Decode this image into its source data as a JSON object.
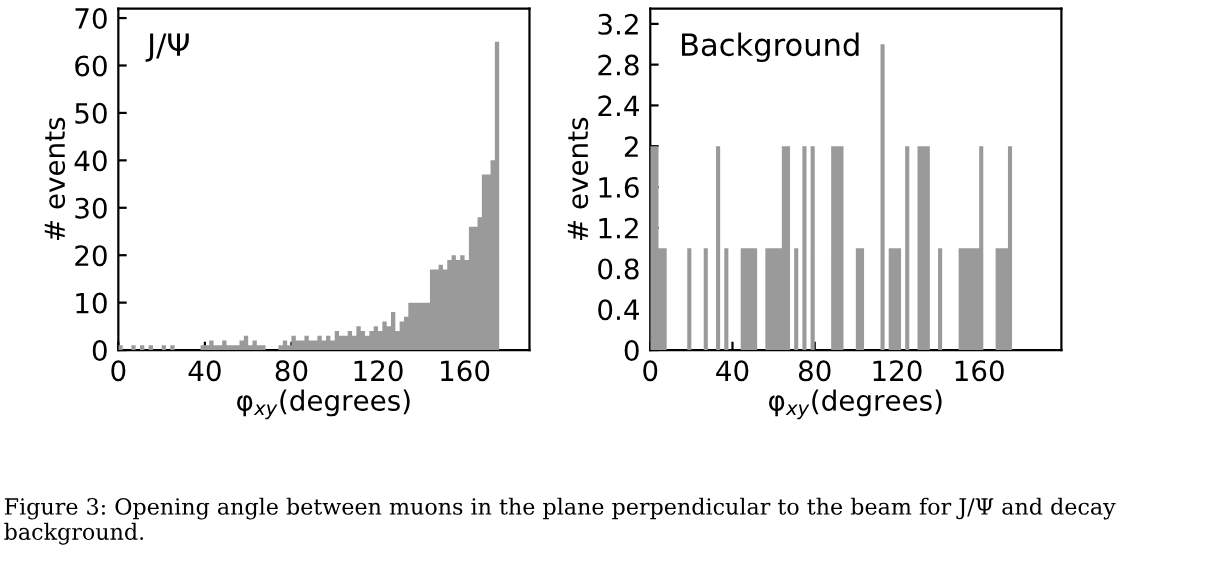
{
  "chart_data": [
    {
      "type": "histogram",
      "title": "J/Ψ",
      "xlabel": "φ$_{xy}$(degrees)",
      "ylabel": "# events",
      "color": "#9a9a9a",
      "bins": [
        0,
        2,
        4,
        6,
        8,
        10,
        12,
        14,
        16,
        18,
        20,
        22,
        24,
        26,
        28,
        30,
        32,
        34,
        36,
        38,
        40,
        42,
        44,
        46,
        48,
        50,
        52,
        54,
        56,
        58,
        60,
        62,
        64,
        66,
        68,
        70,
        72,
        74,
        76,
        78,
        80,
        82,
        84,
        86,
        88,
        90,
        92,
        94,
        96,
        98,
        100,
        102,
        104,
        106,
        108,
        110,
        112,
        114,
        116,
        118,
        120,
        122,
        124,
        126,
        128,
        130,
        132,
        134,
        136,
        138,
        140,
        142,
        144,
        146,
        148,
        150,
        152,
        154,
        156,
        158,
        160,
        162,
        164,
        166,
        168,
        170,
        172,
        174,
        176,
        178,
        180,
        182,
        184,
        186,
        188,
        190
      ],
      "values": [
        1,
        0,
        0,
        1,
        0,
        1,
        0,
        1,
        0,
        0,
        1,
        0,
        1,
        0,
        0,
        0,
        0,
        0,
        0,
        1,
        1,
        2,
        1,
        1,
        2,
        1,
        1,
        1,
        2,
        3,
        1,
        2,
        1,
        1,
        0,
        0,
        0,
        1,
        2,
        1,
        3,
        2,
        2,
        3,
        2,
        2,
        3,
        2,
        3,
        2,
        4,
        3,
        3,
        4,
        3,
        5,
        4,
        3,
        4,
        5,
        4,
        6,
        5,
        8,
        4,
        6,
        7,
        10,
        10,
        10,
        10,
        10,
        17,
        17,
        18,
        17,
        19,
        20,
        19,
        20,
        19,
        26,
        26,
        28,
        37,
        37,
        40,
        65,
        0,
        0,
        0,
        0,
        0,
        0,
        0
      ],
      "xlim": [
        0,
        190
      ],
      "xticks": [
        0,
        40,
        80,
        120,
        160
      ],
      "ylim": [
        0,
        72
      ],
      "yticks": [
        0,
        10,
        20,
        30,
        40,
        50,
        60,
        70
      ],
      "annotations": [
        "Figure 3: Opening angle between muons in the plane perpendicular to the beam for J/Ψ and decay background."
      ]
    },
    {
      "type": "histogram",
      "title": "Background",
      "xlabel": "φ$_{xy}$(degrees)",
      "ylabel": "# events",
      "color": "#9a9a9a",
      "bins": [
        0,
        2,
        4,
        6,
        8,
        10,
        12,
        14,
        16,
        18,
        20,
        22,
        24,
        26,
        28,
        30,
        32,
        34,
        36,
        38,
        40,
        42,
        44,
        46,
        48,
        50,
        52,
        54,
        56,
        58,
        60,
        62,
        64,
        66,
        68,
        70,
        72,
        74,
        76,
        78,
        80,
        82,
        84,
        86,
        88,
        90,
        92,
        94,
        96,
        98,
        100,
        102,
        104,
        106,
        108,
        110,
        112,
        114,
        116,
        118,
        120,
        122,
        124,
        126,
        128,
        130,
        132,
        134,
        136,
        138,
        140,
        142,
        144,
        146,
        148,
        150,
        152,
        154,
        156,
        158,
        160,
        162,
        164,
        166,
        168,
        170,
        172,
        174,
        176,
        178,
        180,
        182,
        184,
        186,
        188,
        190,
        192,
        194,
        196,
        198,
        200
      ],
      "values": [
        2,
        2,
        1,
        1,
        0,
        0,
        0,
        0,
        0,
        1,
        0,
        0,
        0,
        1,
        0,
        0,
        2,
        0,
        1,
        0,
        0,
        0,
        1,
        1,
        1,
        1,
        0,
        0,
        1,
        1,
        1,
        1,
        2,
        2,
        0,
        1,
        0,
        2,
        0,
        2,
        0,
        0,
        0,
        0,
        2,
        2,
        2,
        0,
        0,
        0,
        1,
        1,
        0,
        0,
        0,
        0,
        3,
        0,
        1,
        1,
        1,
        0,
        2,
        0,
        0,
        2,
        2,
        2,
        0,
        0,
        1,
        0,
        0,
        0,
        0,
        1,
        1,
        1,
        1,
        1,
        2,
        0,
        0,
        0,
        1,
        1,
        1,
        2,
        0,
        0,
        0,
        0,
        0,
        0,
        0,
        0,
        0,
        0,
        0,
        0
      ],
      "xlim": [
        0,
        200
      ],
      "xticks": [
        0,
        40,
        80,
        120,
        160
      ],
      "ylim": [
        0,
        3.35
      ],
      "yticks": [
        0,
        0.4,
        0.8,
        1.2,
        1.6,
        2,
        2.4,
        2.8,
        3.2
      ]
    }
  ]
}
